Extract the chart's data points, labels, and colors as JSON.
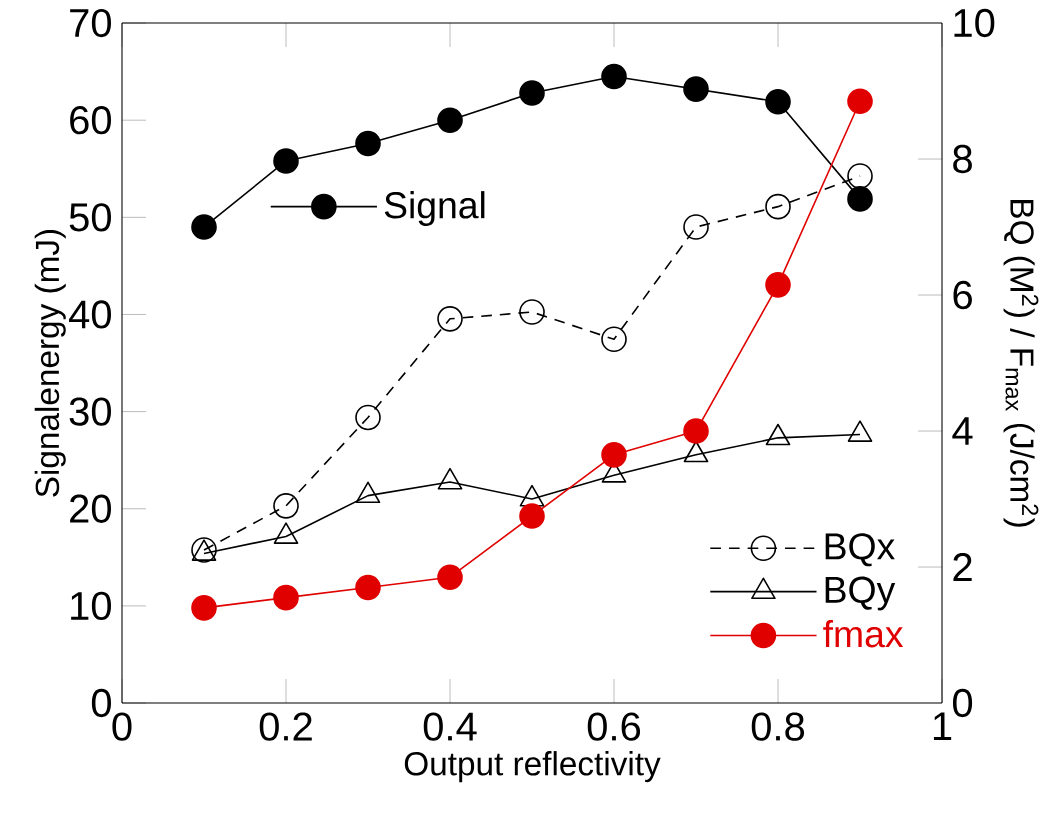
{
  "chart_data": {
    "type": "line",
    "xlabel": "Output reflectivity",
    "ylabel": "Signalenergy (mJ)",
    "y2label": "BQ (M$^{2}$) / F$_{max}$ (J/cm$^{2}$)",
    "x": [
      0.1,
      0.2,
      0.3,
      0.4,
      0.5,
      0.6,
      0.7,
      0.8,
      0.9
    ],
    "xlim": [
      0,
      1
    ],
    "xticks": [
      0,
      0.2,
      0.4,
      0.6,
      0.8,
      1
    ],
    "ylim": [
      0,
      70
    ],
    "yticks": [
      0,
      10,
      20,
      30,
      40,
      50,
      60,
      70
    ],
    "y2lim": [
      0,
      10
    ],
    "y2ticks": [
      0,
      2,
      4,
      6,
      8,
      10
    ],
    "grid": false,
    "legend": "bottom right",
    "series": [
      {
        "name": "Signal",
        "color": "#000000",
        "marker": "circle_filled",
        "line_style": "solid",
        "axis": "y",
        "values": [
          49,
          55.8,
          57.6,
          60,
          62.8,
          64.5,
          63.2,
          61.9,
          51.9
        ]
      },
      {
        "name": "BQx",
        "color": "#000000",
        "marker": "circle",
        "line_style": "dashed",
        "axis": "y2",
        "values": [
          2.25,
          2.9,
          4.2,
          5.65,
          5.75,
          5.35,
          7.0,
          7.3,
          7.75
        ]
      },
      {
        "name": "BQy",
        "color": "#000000",
        "marker": "triangle",
        "line_style": "solid",
        "axis": "y2",
        "values": [
          2.2,
          2.45,
          3.05,
          3.25,
          3.0,
          3.35,
          3.65,
          3.9,
          3.95
        ]
      },
      {
        "name": "fmax",
        "color": "#e00000",
        "marker": "circle_filled",
        "line_style": "solid",
        "axis": "y2",
        "values": [
          1.4,
          1.55,
          1.7,
          1.85,
          2.75,
          3.65,
          4.0,
          6.15,
          8.85
        ]
      }
    ]
  }
}
